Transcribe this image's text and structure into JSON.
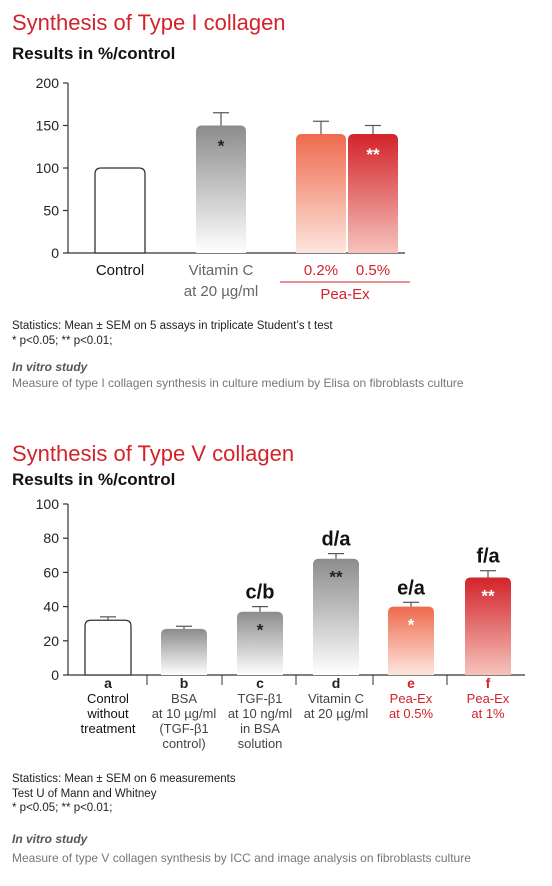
{
  "colors": {
    "accent": "#d2232a",
    "gray_bar": "#9a9a9a",
    "red_light": "#f07860",
    "red_dark": "#d2232a"
  },
  "chart1": {
    "title": "Synthesis of Type I collagen",
    "subtitle": "Results in %/control",
    "stats_line1": "Statistics: Mean ± SEM on 5 assays in triplicate Student’s t test",
    "stats_line2": "* p<0.05; ** p<0.01;",
    "study": "In vitro study",
    "measure": "Measure of  type I collagen synthesis in culture medium by Elisa on fibroblasts culture"
  },
  "chart2": {
    "title": "Synthesis of Type V collagen",
    "subtitle": "Results in %/control",
    "stats_line1": "Statistics: Mean ± SEM on 6 measurements",
    "stats_line2": "Test U of Mann and Whitney",
    "stats_line3": "* p<0.05; ** p<0.01;",
    "study": "In vitro study",
    "measure": "Measure of type V collagen synthesis by ICC and image analysis  on fibroblasts culture"
  },
  "chart_data": [
    {
      "type": "bar",
      "title": "Synthesis of Type I collagen",
      "ylabel": "Results in %/control",
      "ylim": [
        0,
        200
      ],
      "yticks": [
        0,
        50,
        100,
        150,
        200
      ],
      "categories": [
        [
          "Control"
        ],
        [
          "Vitamin C",
          "at 20 µg/ml"
        ],
        [
          "0.2%"
        ],
        [
          "0.5%"
        ]
      ],
      "group_label": "Pea-Ex",
      "values": [
        100,
        150,
        140,
        140
      ],
      "errors": [
        0,
        15,
        15,
        10
      ],
      "significance": [
        "",
        "*",
        "",
        "**"
      ],
      "styles": [
        "white",
        "gray",
        "red-light",
        "red-dark"
      ],
      "label_colors": [
        "#111111",
        "#666666",
        "#d2232a",
        "#d2232a"
      ]
    },
    {
      "type": "bar",
      "title": "Synthesis of Type V collagen",
      "ylabel": "Results in %/control",
      "ylim": [
        0,
        100
      ],
      "yticks": [
        0,
        20,
        40,
        60,
        80,
        100
      ],
      "categories": [
        [
          "a",
          "Control",
          "without",
          "treatment"
        ],
        [
          "b",
          "BSA",
          "at 10 µg/ml",
          "(TGF-β1",
          "control)"
        ],
        [
          "c",
          "TGF-β1",
          "at 10 ng/ml",
          "in BSA",
          "solution"
        ],
        [
          "d",
          "Vitamin C",
          "at 20 µg/ml"
        ],
        [
          "e",
          "Pea-Ex",
          "at 0.5%"
        ],
        [
          "f",
          "Pea-Ex",
          "at 1%"
        ]
      ],
      "values": [
        32,
        27,
        37,
        68,
        40,
        57
      ],
      "errors": [
        2,
        1.5,
        3,
        3,
        2.5,
        4
      ],
      "significance": [
        "",
        "",
        "*",
        "**",
        "*",
        "**"
      ],
      "comparisons": [
        "",
        "",
        "c/b",
        "d/a",
        "e/a",
        "f/a"
      ],
      "styles": [
        "white",
        "gray",
        "gray",
        "gray",
        "red-light",
        "red-dark"
      ],
      "label_colors": [
        "#111111",
        "#444444",
        "#444444",
        "#444444",
        "#d2232a",
        "#d2232a"
      ]
    }
  ]
}
